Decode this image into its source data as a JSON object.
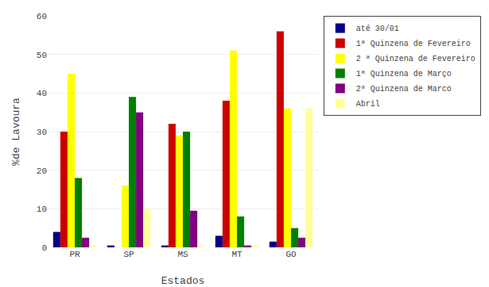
{
  "chart_data": {
    "type": "bar",
    "categories": [
      "PR",
      "SP",
      "MS",
      "MT",
      "GO"
    ],
    "series": [
      {
        "name": "até 30/01",
        "color": "#00008B",
        "values": [
          4,
          0.5,
          0.5,
          3,
          1.5
        ]
      },
      {
        "name": "1ª Quinzena de Fevereiro",
        "color": "#CC0000",
        "values": [
          30,
          0,
          32,
          38,
          56
        ]
      },
      {
        "name": "2 ª Quinzena de Fevereiro",
        "color": "#FFFF00",
        "values": [
          45,
          16,
          29,
          51,
          36
        ]
      },
      {
        "name": "1ª Quinzena de Março",
        "color": "#008000",
        "values": [
          18,
          39,
          30,
          8,
          5
        ]
      },
      {
        "name": "2ª Quinzena de Marco",
        "color": "#800080",
        "values": [
          2.5,
          35,
          9.5,
          0.5,
          2.5
        ]
      },
      {
        "name": "Abril",
        "color": "#FFFF99",
        "values": [
          0.5,
          10,
          0.5,
          0.5,
          36
        ]
      }
    ],
    "xlabel": "Estados",
    "ylabel": "%de Lavoura",
    "ylim": [
      0,
      60
    ],
    "yticks": [
      0,
      10,
      20,
      30,
      40,
      50,
      60
    ],
    "grid": true,
    "legend": "right"
  }
}
